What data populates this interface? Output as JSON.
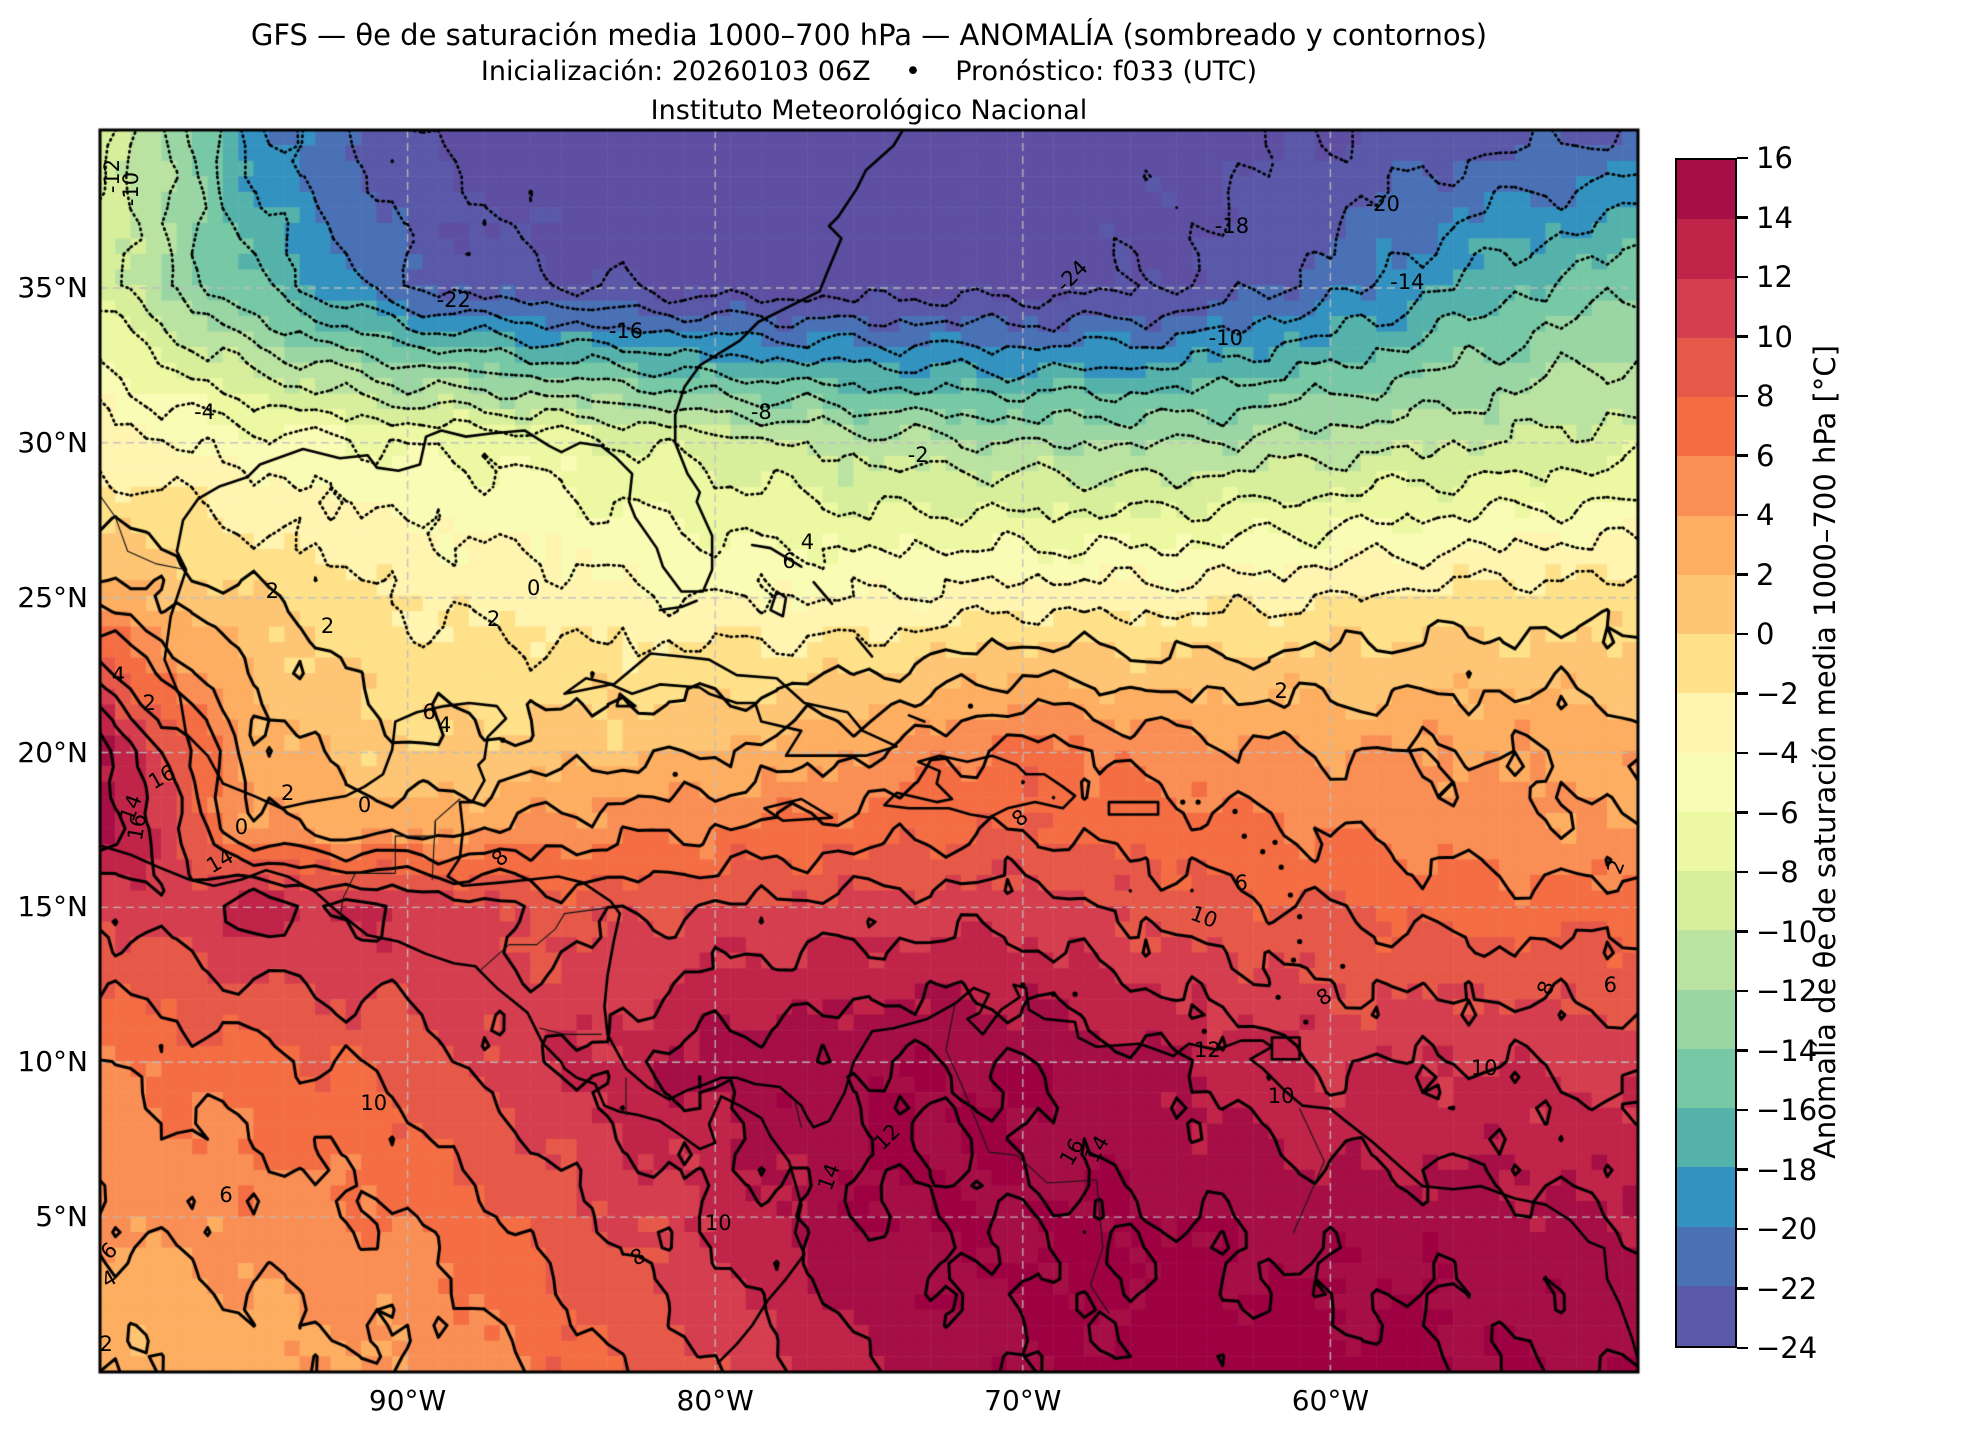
{
  "titles": {
    "line1": "GFS — θe de saturación media 1000–700 hPa — ANOMALÍA (sombreado y contornos)",
    "line2": "Inicialización: 20260103 06Z    •    Pronóstico: f033 (UTC)",
    "line3": "Instituto Meteorológico Nacional"
  },
  "axes": {
    "x_ticks": [
      {
        "label": "90°W",
        "lon": -90
      },
      {
        "label": "80°W",
        "lon": -80
      },
      {
        "label": "70°W",
        "lon": -70
      },
      {
        "label": "60°W",
        "lon": -60
      }
    ],
    "y_ticks": [
      {
        "label": "35°N",
        "lat": 35
      },
      {
        "label": "30°N",
        "lat": 30
      },
      {
        "label": "25°N",
        "lat": 25
      },
      {
        "label": "20°N",
        "lat": 20
      },
      {
        "label": "15°N",
        "lat": 15
      },
      {
        "label": "10°N",
        "lat": 10
      },
      {
        "label": "5°N",
        "lat": 5
      }
    ]
  },
  "colorbar": {
    "title": "Anomalía de θe de saturación media 1000–700 hPa [°C]",
    "tick_labels": [
      "16",
      "14",
      "12",
      "10",
      "8",
      "6",
      "4",
      "2",
      "0",
      "−2",
      "−4",
      "−6",
      "−8",
      "−10",
      "−12",
      "−14",
      "−16",
      "−18",
      "−20",
      "−22",
      "−24"
    ],
    "tick_values": [
      16,
      14,
      12,
      10,
      8,
      6,
      4,
      2,
      0,
      -2,
      -4,
      -6,
      -8,
      -10,
      -12,
      -14,
      -16,
      -18,
      -20,
      -22,
      -24
    ],
    "colors_top_to_bottom": [
      "#a50f45",
      "#c02448",
      "#d53e4f",
      "#e65949",
      "#f46d43",
      "#f98f55",
      "#fdae61",
      "#fdc574",
      "#fee189",
      "#fff4b0",
      "#f9fcb5",
      "#ecf8a2",
      "#d7ef9b",
      "#bae3a1",
      "#9ad6a4",
      "#77c8a5",
      "#55b2ab",
      "#3392c0",
      "#4a70b5",
      "#5a58a8"
    ],
    "over_color": "#9e0142",
    "under_color": "#5e4fa2"
  },
  "chart_data": {
    "type": "heatmap",
    "subtype": "filled-contour-map",
    "units": "°C",
    "extent": {
      "lon_min": -100,
      "lon_max": -50,
      "lat_min": 0,
      "lat_max": 40.1
    },
    "grid_lons_shown": [
      -90,
      -80,
      -70,
      -60
    ],
    "grid_lats_shown": [
      5,
      10,
      15,
      20,
      25,
      30,
      35
    ],
    "contour_levels_min": -24,
    "contour_levels_max": 16,
    "contour_step": 2,
    "negative_contour_style": "dotted",
    "positive_contour_style": "solid",
    "grid": {
      "lons": [
        -100,
        -95,
        -90,
        -85,
        -80,
        -75,
        -70,
        -65,
        -60,
        -55,
        -50
      ],
      "lats": [
        40,
        35,
        30,
        25,
        20,
        17.5,
        15,
        10,
        5,
        0
      ],
      "values_c": [
        [
          -7,
          -19,
          -24,
          -26,
          -26,
          -26,
          -26,
          -25,
          -24,
          -23,
          -22
        ],
        [
          -9,
          -16,
          -22,
          -24,
          -25,
          -25,
          -25,
          -24,
          -21,
          -17,
          -14
        ],
        [
          -3,
          -5,
          -6,
          -7,
          -9,
          -11,
          -12,
          -12,
          -11,
          -10,
          -9
        ],
        [
          3,
          0,
          -2,
          -3,
          -4,
          -4,
          -3,
          -3,
          -2,
          -1,
          -1
        ],
        [
          15,
          3,
          0,
          1,
          2,
          4,
          7,
          5,
          4,
          4,
          3
        ],
        [
          16,
          4,
          3,
          5,
          6,
          7,
          8,
          7,
          6,
          5,
          4
        ],
        [
          10,
          13,
          12,
          9,
          10,
          11,
          11,
          9,
          8,
          7,
          7
        ],
        [
          6,
          7,
          9,
          12,
          15,
          16,
          16,
          14,
          12,
          12,
          11
        ],
        [
          4,
          5,
          6,
          9,
          12,
          16,
          16,
          16,
          15,
          15,
          14
        ],
        [
          2,
          3,
          4,
          7,
          10,
          14,
          16,
          17,
          17,
          16,
          16
        ]
      ]
    },
    "contour_label_format": [
      "value",
      "lon",
      "lat",
      "rot_deg"
    ],
    "contour_labels": [
      [
        -12,
        -99.6,
        38.6,
        -90
      ],
      [
        -10,
        -99.0,
        38.2,
        -90
      ],
      [
        -22,
        -88.5,
        34.6,
        0
      ],
      [
        -24,
        -68.4,
        35.4,
        -45
      ],
      [
        -18,
        -63.2,
        37.0,
        0
      ],
      [
        -20,
        -58.3,
        37.7,
        0
      ],
      [
        -14,
        -57.5,
        35.2,
        0
      ],
      [
        -16,
        -82.9,
        33.6,
        0
      ],
      [
        -10,
        -63.4,
        33.4,
        0
      ],
      [
        -8,
        -78.5,
        31.0,
        0
      ],
      [
        -4,
        -96.6,
        31.0,
        0
      ],
      [
        -2,
        -73.4,
        29.6,
        0
      ],
      [
        0,
        -85.9,
        25.3,
        0
      ],
      [
        2,
        -87.2,
        24.3,
        0
      ],
      [
        4,
        -77.0,
        26.8,
        0
      ],
      [
        6,
        -77.6,
        26.2,
        0
      ],
      [
        2,
        -94.4,
        25.2,
        0
      ],
      [
        2,
        -92.6,
        24.1,
        0
      ],
      [
        4,
        -99.4,
        22.5,
        0
      ],
      [
        2,
        -98.4,
        21.6,
        0
      ],
      [
        16,
        -98.0,
        19.2,
        -30
      ],
      [
        14,
        -99.0,
        18.2,
        -70
      ],
      [
        16,
        -98.8,
        17.6,
        -80
      ],
      [
        0,
        -95.4,
        17.6,
        0
      ],
      [
        2,
        -93.9,
        18.7,
        0
      ],
      [
        0,
        -91.4,
        18.3,
        0
      ],
      [
        14,
        -96.1,
        16.5,
        -30
      ],
      [
        6,
        -89.3,
        21.3,
        0
      ],
      [
        4,
        -88.8,
        20.9,
        0
      ],
      [
        8,
        -87.0,
        16.6,
        -45
      ],
      [
        8,
        -70.1,
        17.9,
        -40
      ],
      [
        10,
        -64.1,
        14.7,
        20
      ],
      [
        12,
        -64.0,
        10.4,
        0
      ],
      [
        10,
        -61.6,
        8.9,
        0
      ],
      [
        16,
        -68.4,
        7.1,
        -60
      ],
      [
        14,
        -67.6,
        7.2,
        -60
      ],
      [
        12,
        -74.4,
        7.6,
        -45
      ],
      [
        8,
        -60.2,
        12.1,
        -30
      ],
      [
        6,
        -50.9,
        12.5,
        0
      ],
      [
        2,
        -50.7,
        16.3,
        -70
      ],
      [
        8,
        -53.0,
        12.4,
        -70
      ],
      [
        10,
        -55.0,
        9.8,
        0
      ],
      [
        10,
        -79.9,
        4.8,
        0
      ],
      [
        8,
        -82.5,
        3.7,
        -30
      ],
      [
        14,
        -76.3,
        6.3,
        -70
      ],
      [
        6,
        -95.9,
        5.7,
        0
      ],
      [
        6,
        -99.7,
        3.9,
        -45
      ],
      [
        4,
        -99.7,
        3.0,
        -30
      ],
      [
        2,
        -99.8,
        0.9,
        0
      ],
      [
        10,
        -91.1,
        8.7,
        0
      ],
      [
        6,
        -62.9,
        15.8,
        0
      ],
      [
        2,
        -61.6,
        22.0,
        0
      ]
    ]
  }
}
